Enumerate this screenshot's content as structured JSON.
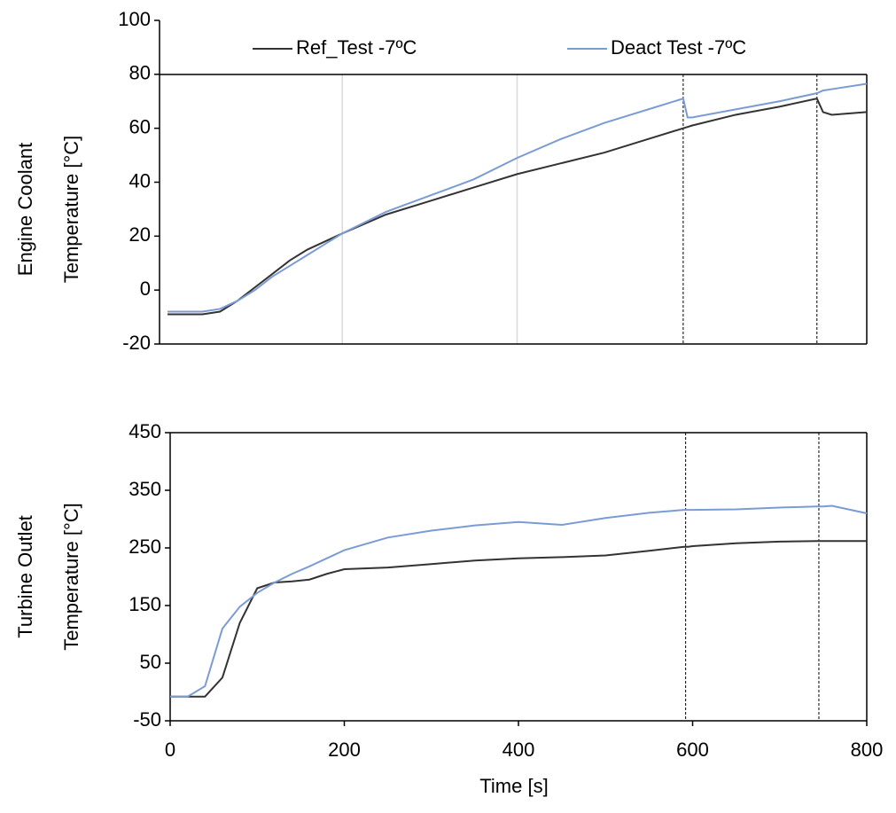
{
  "chart_data": [
    {
      "type": "line",
      "ylabel": [
        "Engine Coolant",
        "Temperature [°C]"
      ],
      "x": [
        0,
        20,
        40,
        60,
        80,
        100,
        120,
        140,
        160,
        180,
        200,
        250,
        300,
        350,
        400,
        450,
        500,
        550,
        590,
        595,
        600,
        650,
        700,
        743,
        750,
        760,
        800
      ],
      "series": [
        {
          "name": "Ref_Test -7ºC",
          "color": "#333333",
          "values": [
            -9,
            -9,
            -9,
            -8,
            -4,
            1,
            6,
            11,
            15,
            18,
            21,
            28,
            33,
            38,
            43,
            47,
            51,
            56,
            60,
            60.5,
            61,
            65,
            68,
            71,
            66,
            65,
            66
          ]
        },
        {
          "name": "Deact Test -7ºC",
          "color": "#7b9bd5",
          "values": [
            -8,
            -8,
            -8,
            -7,
            -4,
            0,
            5,
            9,
            13,
            17,
            21,
            29,
            35,
            41,
            49,
            56,
            62,
            67,
            71,
            64,
            64,
            67,
            70,
            73,
            74,
            74.5,
            76.5
          ]
        }
      ],
      "xlim": [
        0,
        800
      ],
      "ylim": [
        -20,
        100
      ],
      "yticks": [
        -20,
        0,
        20,
        40,
        60,
        80,
        100
      ],
      "xgrid": [
        200,
        400
      ],
      "vlines": [
        590,
        743
      ],
      "legend": "top"
    },
    {
      "type": "line",
      "ylabel": [
        "Turbine Outlet",
        "Temperature [°C]"
      ],
      "xlabel": "Time [s]",
      "x": [
        0,
        20,
        40,
        60,
        80,
        100,
        120,
        140,
        160,
        180,
        200,
        250,
        300,
        350,
        400,
        450,
        500,
        550,
        590,
        595,
        600,
        650,
        700,
        743,
        750,
        760,
        800
      ],
      "series": [
        {
          "name": "Ref_Test -7ºC",
          "color": "#333333",
          "values": [
            -8,
            -8,
            -8,
            25,
            120,
            180,
            190,
            192,
            195,
            205,
            213,
            216,
            222,
            228,
            232,
            234,
            237,
            245,
            252,
            252,
            253,
            258,
            261,
            262,
            262,
            262,
            262
          ]
        },
        {
          "name": "Deact Test -7ºC",
          "color": "#7b9bd5",
          "values": [
            -8,
            -8,
            10,
            110,
            148,
            172,
            190,
            205,
            218,
            232,
            246,
            268,
            280,
            289,
            295,
            290,
            302,
            311,
            316,
            316,
            316,
            317,
            320,
            322,
            322,
            323,
            310
          ]
        }
      ],
      "xlim": [
        0,
        800
      ],
      "ylim": [
        -50,
        450
      ],
      "yticks": [
        -50,
        50,
        150,
        250,
        350,
        450
      ],
      "xticks": [
        0,
        200,
        400,
        600,
        800
      ],
      "vlines": [
        592,
        745
      ]
    }
  ]
}
